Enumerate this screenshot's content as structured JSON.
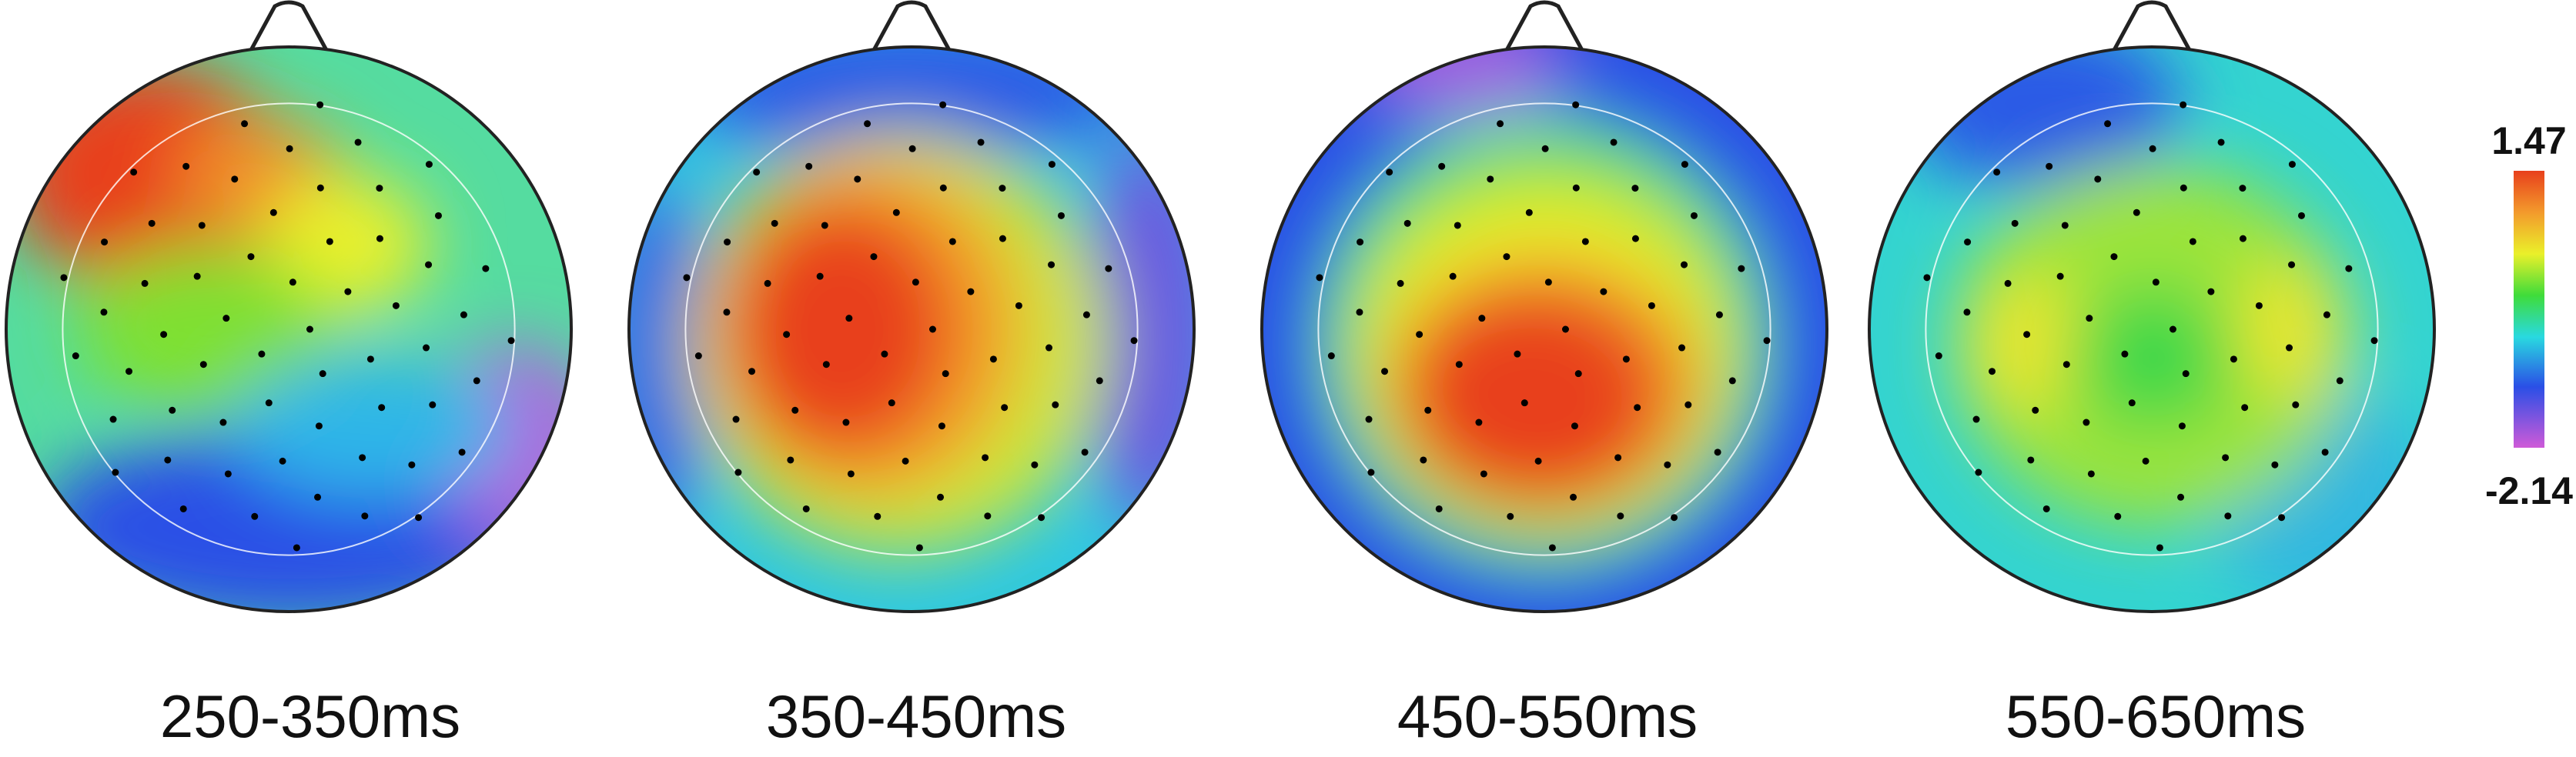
{
  "panels": [
    {
      "label": "250-350ms"
    },
    {
      "label": "350-450ms"
    },
    {
      "label": "450-550ms"
    },
    {
      "label": "550-650ms"
    }
  ],
  "colorbar": {
    "max": "1.47",
    "min": "-2.14"
  }
}
